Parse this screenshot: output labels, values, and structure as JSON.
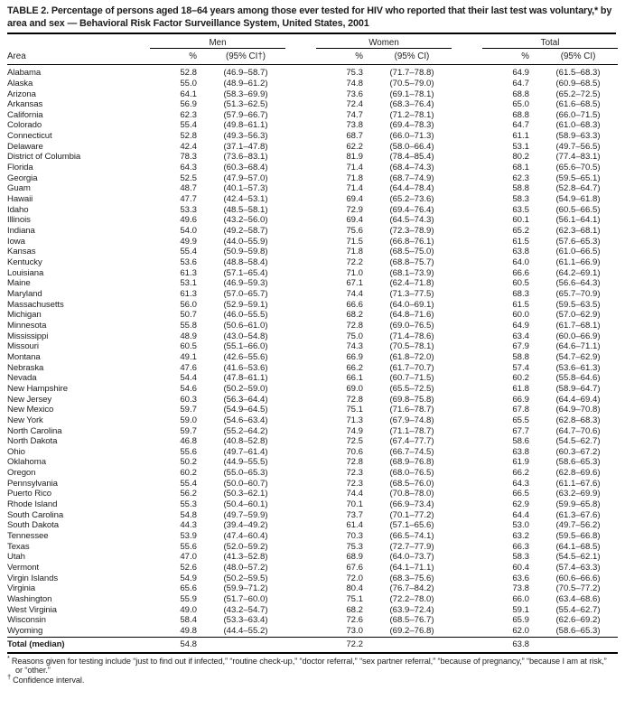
{
  "doc": {
    "title": "TABLE 2. Percentage of persons aged 18–64 years among those ever tested for HIV who reported that their last test was voluntary,* by area and sex — Behavioral Risk Factor Surveillance System, United States, 2001"
  },
  "table": {
    "area_header": "Area",
    "groups": [
      {
        "label": "Men",
        "pct_header": "%",
        "ci_header": "(95% CI†)"
      },
      {
        "label": "Women",
        "pct_header": "%",
        "ci_header": "(95% CI)"
      },
      {
        "label": "Total",
        "pct_header": "%",
        "ci_header": "(95% CI)"
      }
    ],
    "rows": [
      [
        "Alabama",
        "52.8",
        "(46.9–58.7)",
        "75.3",
        "(71.7–78.8)",
        "64.9",
        "(61.5–68.3)"
      ],
      [
        "Alaska",
        "55.0",
        "(48.9–61.2)",
        "74.8",
        "(70.5–79.0)",
        "64.7",
        "(60.9–68.5)"
      ],
      [
        "Arizona",
        "64.1",
        "(58.3–69.9)",
        "73.6",
        "(69.1–78.1)",
        "68.8",
        "(65.2–72.5)"
      ],
      [
        "Arkansas",
        "56.9",
        "(51.3–62.5)",
        "72.4",
        "(68.3–76.4)",
        "65.0",
        "(61.6–68.5)"
      ],
      [
        "California",
        "62.3",
        "(57.9–66.7)",
        "74.7",
        "(71.2–78.1)",
        "68.8",
        "(66.0–71.5)"
      ],
      [
        "Colorado",
        "55.4",
        "(49.8–61.1)",
        "73.8",
        "(69.4–78.3)",
        "64.7",
        "(61.0–68.3)"
      ],
      [
        "Connecticut",
        "52.8",
        "(49.3–56.3)",
        "68.7",
        "(66.0–71.3)",
        "61.1",
        "(58.9–63.3)"
      ],
      [
        "Delaware",
        "42.4",
        "(37.1–47.8)",
        "62.2",
        "(58.0–66.4)",
        "53.1",
        "(49.7–56.5)"
      ],
      [
        "District of Columbia",
        "78.3",
        "(73.6–83.1)",
        "81.9",
        "(78.4–85.4)",
        "80.2",
        "(77.4–83.1)"
      ],
      [
        "Florida",
        "64.3",
        "(60.3–68.4)",
        "71.4",
        "(68.4–74.3)",
        "68.1",
        "(65.6–70.5)"
      ],
      [
        "Georgia",
        "52.5",
        "(47.9–57.0)",
        "71.8",
        "(68.7–74.9)",
        "62.3",
        "(59.5–65.1)"
      ],
      [
        "Guam",
        "48.7",
        "(40.1–57.3)",
        "71.4",
        "(64.4–78.4)",
        "58.8",
        "(52.8–64.7)"
      ],
      [
        "Hawaii",
        "47.7",
        "(42.4–53.1)",
        "69.4",
        "(65.2–73.6)",
        "58.3",
        "(54.9–61.8)"
      ],
      [
        "Idaho",
        "53.3",
        "(48.5–58.1)",
        "72.9",
        "(69.4–76.4)",
        "63.5",
        "(60.5–66.5)"
      ],
      [
        "Illinois",
        "49.6",
        "(43.2–56.0)",
        "69.4",
        "(64.5–74.3)",
        "60.1",
        "(56.1–64.1)"
      ],
      [
        "Indiana",
        "54.0",
        "(49.2–58.7)",
        "75.6",
        "(72.3–78.9)",
        "65.2",
        "(62.3–68.1)"
      ],
      [
        "Iowa",
        "49.9",
        "(44.0–55.9)",
        "71.5",
        "(66.8–76.1)",
        "61.5",
        "(57.6–65.3)"
      ],
      [
        "Kansas",
        "55.4",
        "(50.9–59.8)",
        "71.8",
        "(68.5–75.0)",
        "63.8",
        "(61.0–66.5)"
      ],
      [
        "Kentucky",
        "53.6",
        "(48.8–58.4)",
        "72.2",
        "(68.8–75.7)",
        "64.0",
        "(61.1–66.9)"
      ],
      [
        "Louisiana",
        "61.3",
        "(57.1–65.4)",
        "71.0",
        "(68.1–73.9)",
        "66.6",
        "(64.2–69.1)"
      ],
      [
        "Maine",
        "53.1",
        "(46.9–59.3)",
        "67.1",
        "(62.4–71.8)",
        "60.5",
        "(56.6–64.3)"
      ],
      [
        "Maryland",
        "61.3",
        "(57.0–65.7)",
        "74.4",
        "(71.3–77.5)",
        "68.3",
        "(65.7–70.9)"
      ],
      [
        "Massachusetts",
        "56.0",
        "(52.9–59.1)",
        "66.6",
        "(64.0–69.1)",
        "61.5",
        "(59.5–63.5)"
      ],
      [
        "Michigan",
        "50.7",
        "(46.0–55.5)",
        "68.2",
        "(64.8–71.6)",
        "60.0",
        "(57.0–62.9)"
      ],
      [
        "Minnesota",
        "55.8",
        "(50.6–61.0)",
        "72.8",
        "(69.0–76.5)",
        "64.9",
        "(61.7–68.1)"
      ],
      [
        "Mississippi",
        "48.9",
        "(43.0–54.8)",
        "75.0",
        "(71.4–78.6)",
        "63.4",
        "(60.0–66.9)"
      ],
      [
        "Missouri",
        "60.5",
        "(55.1–66.0)",
        "74.3",
        "(70.5–78.1)",
        "67.9",
        "(64.6–71.1)"
      ],
      [
        "Montana",
        "49.1",
        "(42.6–55.6)",
        "66.9",
        "(61.8–72.0)",
        "58.8",
        "(54.7–62.9)"
      ],
      [
        "Nebraska",
        "47.6",
        "(41.6–53.6)",
        "66.2",
        "(61.7–70.7)",
        "57.4",
        "(53.6–61.3)"
      ],
      [
        "Nevada",
        "54.4",
        "(47.8–61.1)",
        "66.1",
        "(60.7–71.5)",
        "60.2",
        "(55.8–64.6)"
      ],
      [
        "New Hampshire",
        "54.6",
        "(50.2–59.0)",
        "69.0",
        "(65.5–72.5)",
        "61.8",
        "(58.9–64.7)"
      ],
      [
        "New Jersey",
        "60.3",
        "(56.3–64.4)",
        "72.8",
        "(69.8–75.8)",
        "66.9",
        "(64.4–69.4)"
      ],
      [
        "New Mexico",
        "59.7",
        "(54.9–64.5)",
        "75.1",
        "(71.6–78.7)",
        "67.8",
        "(64.9–70.8)"
      ],
      [
        "New York",
        "59.0",
        "(54.6–63.4)",
        "71.3",
        "(67.9–74.8)",
        "65.5",
        "(62.8–68.3)"
      ],
      [
        "North Carolina",
        "59.7",
        "(55.2–64.2)",
        "74.9",
        "(71.1–78.7)",
        "67.7",
        "(64.7–70.6)"
      ],
      [
        "North Dakota",
        "46.8",
        "(40.8–52.8)",
        "72.5",
        "(67.4–77.7)",
        "58.6",
        "(54.5–62.7)"
      ],
      [
        "Ohio",
        "55.6",
        "(49.7–61.4)",
        "70.6",
        "(66.7–74.5)",
        "63.8",
        "(60.3–67.2)"
      ],
      [
        "Oklahoma",
        "50.2",
        "(44.9–55.5)",
        "72.8",
        "(68.9–76.8)",
        "61.9",
        "(58.6–65.3)"
      ],
      [
        "Oregon",
        "60.2",
        "(55.0–65.3)",
        "72.3",
        "(68.0–76.5)",
        "66.2",
        "(62.8–69.6)"
      ],
      [
        "Pennsylvania",
        "55.4",
        "(50.0–60.7)",
        "72.3",
        "(68.5–76.0)",
        "64.3",
        "(61.1–67.6)"
      ],
      [
        "Puerto Rico",
        "56.2",
        "(50.3–62.1)",
        "74.4",
        "(70.8–78.0)",
        "66.5",
        "(63.2–69.9)"
      ],
      [
        "Rhode Island",
        "55.3",
        "(50.4–60.1)",
        "70.1",
        "(66.9–73.4)",
        "62.9",
        "(59.9–65.8)"
      ],
      [
        "South Carolina",
        "54.8",
        "(49.7–59.9)",
        "73.7",
        "(70.1–77.2)",
        "64.4",
        "(61.3–67.6)"
      ],
      [
        "South Dakota",
        "44.3",
        "(39.4–49.2)",
        "61.4",
        "(57.1–65.6)",
        "53.0",
        "(49.7–56.2)"
      ],
      [
        "Tennessee",
        "53.9",
        "(47.4–60.4)",
        "70.3",
        "(66.5–74.1)",
        "63.2",
        "(59.5–66.8)"
      ],
      [
        "Texas",
        "55.6",
        "(52.0–59.2)",
        "75.3",
        "(72.7–77.9)",
        "66.3",
        "(64.1–68.5)"
      ],
      [
        "Utah",
        "47.0",
        "(41.3–52.8)",
        "68.9",
        "(64.0–73.7)",
        "58.3",
        "(54.5–62.1)"
      ],
      [
        "Vermont",
        "52.6",
        "(48.0–57.2)",
        "67.6",
        "(64.1–71.1)",
        "60.4",
        "(57.4–63.3)"
      ],
      [
        "Virgin Islands",
        "54.9",
        "(50.2–59.5)",
        "72.0",
        "(68.3–75.6)",
        "63.6",
        "(60.6–66.6)"
      ],
      [
        "Virginia",
        "65.6",
        "(59.9–71.2)",
        "80.4",
        "(76.7–84.2)",
        "73.8",
        "(70.5–77.2)"
      ],
      [
        "Washington",
        "55.9",
        "(51.7–60.0)",
        "75.1",
        "(72.2–78.0)",
        "66.0",
        "(63.4–68.6)"
      ],
      [
        "West Virginia",
        "49.0",
        "(43.2–54.7)",
        "68.2",
        "(63.9–72.4)",
        "59.1",
        "(55.4–62.7)"
      ],
      [
        "Wisconsin",
        "58.4",
        "(53.3–63.4)",
        "72.6",
        "(68.5–76.7)",
        "65.9",
        "(62.6–69.2)"
      ],
      [
        "Wyoming",
        "49.8",
        "(44.4–55.2)",
        "73.0",
        "(69.2–76.8)",
        "62.0",
        "(58.6–65.3)"
      ]
    ],
    "total_row": [
      "Total (median)",
      "54.8",
      "",
      "72.2",
      "",
      "63.8",
      ""
    ]
  },
  "footnotes": [
    {
      "marker": "*",
      "text": "Reasons given for testing include “just to find out if infected,” “routine check-up,” “doctor referral,” “sex partner referral,” “because of pregnancy,” “because I am at risk,” or “other.”"
    },
    {
      "marker": "†",
      "text": "Confidence interval."
    }
  ]
}
